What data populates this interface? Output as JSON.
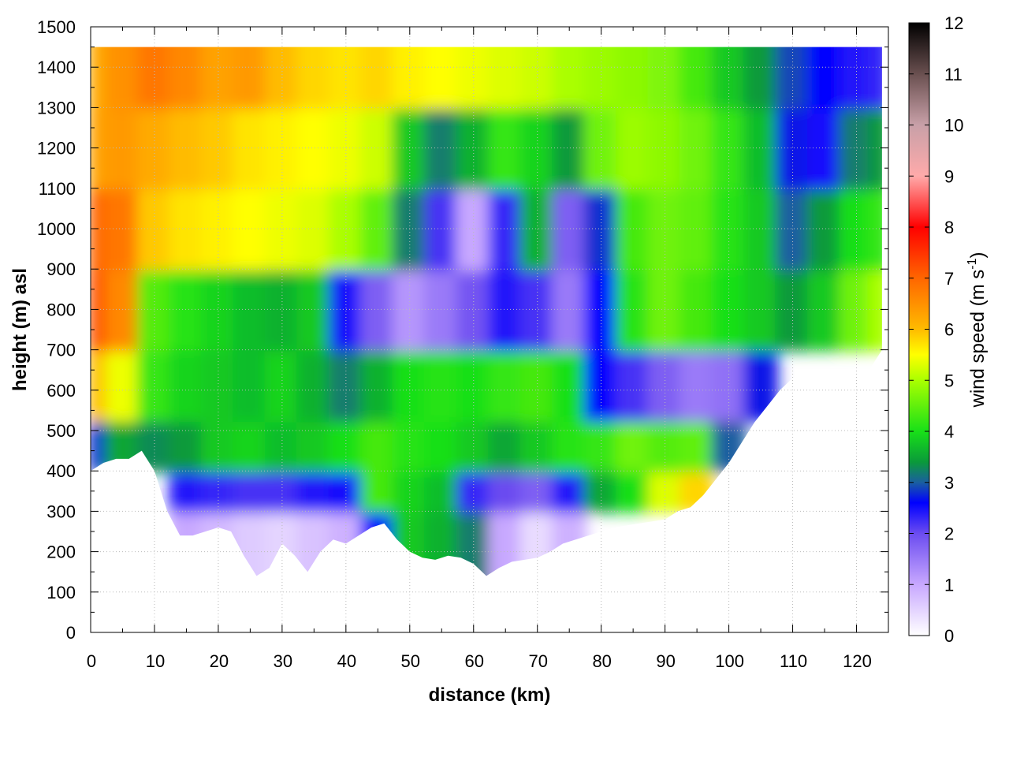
{
  "chart_data": {
    "type": "heatmap",
    "title": "",
    "xlabel": "distance (km)",
    "ylabel": "height (m) asl",
    "xlim": [
      0,
      125
    ],
    "ylim": [
      0,
      1500
    ],
    "x_ticks": [
      0,
      10,
      20,
      30,
      40,
      50,
      60,
      70,
      80,
      90,
      100,
      110,
      120
    ],
    "y_ticks": [
      0,
      100,
      200,
      300,
      400,
      500,
      600,
      700,
      800,
      900,
      1000,
      1100,
      1200,
      1300,
      1400,
      1500
    ],
    "grid": true,
    "colorbar": {
      "label": "wind speed (m s",
      "label_superscript": "-1",
      "label_end": ")",
      "range": [
        0,
        12
      ],
      "ticks": [
        0,
        1,
        2,
        3,
        4,
        5,
        6,
        7,
        8,
        9,
        10,
        11,
        12
      ],
      "stops": [
        {
          "value": 0,
          "color": "#ffffff"
        },
        {
          "value": 1,
          "color": "#c8a8ff"
        },
        {
          "value": 2,
          "color": "#6b4cf0"
        },
        {
          "value": 2.6,
          "color": "#0000ff"
        },
        {
          "value": 3,
          "color": "#1a5fa0"
        },
        {
          "value": 3.4,
          "color": "#0a9a3a"
        },
        {
          "value": 4,
          "color": "#18e018"
        },
        {
          "value": 5,
          "color": "#aaff00"
        },
        {
          "value": 5.5,
          "color": "#ffff00"
        },
        {
          "value": 6,
          "color": "#ffbb00"
        },
        {
          "value": 7,
          "color": "#ff6600"
        },
        {
          "value": 8,
          "color": "#ff0000"
        },
        {
          "value": 9,
          "color": "#ffaaaa"
        },
        {
          "value": 10,
          "color": "#c8a0a8"
        },
        {
          "value": 11,
          "color": "#6a5050"
        },
        {
          "value": 12,
          "color": "#000000"
        }
      ]
    },
    "terrain_surface": {
      "x": [
        0,
        2,
        4,
        6,
        8,
        10,
        12,
        14,
        16,
        18,
        20,
        22,
        24,
        26,
        28,
        30,
        32,
        34,
        36,
        38,
        40,
        42,
        44,
        46,
        48,
        50,
        52,
        54,
        56,
        58,
        60,
        62,
        64,
        66,
        68,
        70,
        72,
        74,
        76,
        78,
        80,
        82,
        84,
        86,
        88,
        90,
        92,
        94,
        96,
        98,
        100,
        102,
        104,
        106,
        108,
        110,
        112,
        114,
        116,
        118,
        120,
        122,
        124
      ],
      "height_m": [
        400,
        420,
        430,
        430,
        450,
        400,
        300,
        240,
        240,
        250,
        260,
        250,
        190,
        140,
        160,
        220,
        190,
        150,
        200,
        230,
        220,
        240,
        260,
        270,
        230,
        200,
        185,
        180,
        190,
        185,
        170,
        140,
        160,
        175,
        180,
        185,
        200,
        220,
        230,
        240,
        250,
        260,
        265,
        270,
        275,
        280,
        300,
        310,
        340,
        380,
        420,
        470,
        520,
        560,
        600,
        630,
        640,
        650,
        640,
        620,
        610,
        650,
        700
      ]
    },
    "series": [
      {
        "x": [
          0,
          5,
          10,
          15,
          20,
          25,
          30,
          35,
          40,
          45,
          50,
          55,
          60,
          65,
          70,
          75,
          80,
          85,
          90,
          95,
          100,
          105,
          110,
          115,
          120,
          124
        ],
        "height_m": 1400,
        "values": [
          6.2,
          6.5,
          6.8,
          6.6,
          6.3,
          6.4,
          6.0,
          5.8,
          5.7,
          5.8,
          5.6,
          5.5,
          5.4,
          5.3,
          5.2,
          5.0,
          4.9,
          4.8,
          4.7,
          4.3,
          3.8,
          3.4,
          2.9,
          2.6,
          2.4,
          2.3
        ]
      },
      {
        "x": [
          0,
          5,
          10,
          15,
          20,
          25,
          30,
          35,
          40,
          45,
          50,
          55,
          60,
          65,
          70,
          75,
          80,
          85,
          90,
          95,
          100,
          105,
          110,
          115,
          120,
          124
        ],
        "height_m": 1200,
        "values": [
          6.3,
          6.4,
          6.2,
          6.0,
          5.9,
          5.7,
          5.6,
          5.5,
          5.4,
          5.2,
          3.8,
          3.2,
          3.6,
          4.2,
          3.9,
          3.4,
          4.6,
          4.9,
          4.8,
          4.6,
          4.2,
          3.7,
          2.7,
          2.5,
          3.2,
          3.4
        ]
      },
      {
        "x": [
          0,
          5,
          10,
          15,
          20,
          25,
          30,
          35,
          40,
          45,
          50,
          55,
          60,
          65,
          70,
          75,
          80,
          85,
          90,
          95,
          100,
          105,
          110,
          115,
          120,
          124
        ],
        "height_m": 1000,
        "values": [
          7.0,
          6.8,
          5.9,
          5.7,
          5.6,
          5.5,
          5.4,
          5.3,
          5.0,
          4.5,
          3.2,
          2.2,
          1.0,
          2.3,
          3.6,
          1.8,
          2.8,
          4.3,
          4.6,
          4.5,
          4.1,
          3.8,
          3.0,
          3.4,
          4.0,
          4.2
        ]
      },
      {
        "x": [
          0,
          5,
          10,
          15,
          20,
          25,
          30,
          35,
          40,
          45,
          50,
          55,
          60,
          65,
          70,
          75,
          80,
          85,
          90,
          95,
          100,
          105,
          110,
          115,
          120,
          124
        ],
        "height_m": 800,
        "values": [
          7.2,
          6.6,
          4.4,
          4.1,
          3.9,
          3.7,
          3.6,
          3.8,
          2.5,
          1.8,
          1.2,
          1.5,
          1.9,
          2.4,
          2.2,
          1.5,
          2.6,
          4.1,
          4.6,
          4.3,
          4.0,
          3.8,
          3.4,
          3.8,
          4.6,
          5.0
        ]
      },
      {
        "x": [
          0,
          5,
          10,
          15,
          20,
          25,
          30,
          35,
          40,
          45,
          50,
          55,
          60,
          65,
          70,
          75,
          80,
          85,
          90,
          95,
          100,
          105,
          110,
          115,
          120,
          124
        ],
        "height_m": 600,
        "values": [
          6.0,
          5.4,
          4.2,
          3.9,
          3.8,
          3.7,
          3.9,
          3.6,
          3.2,
          3.6,
          4.0,
          4.1,
          4.0,
          4.2,
          4.3,
          4.0,
          2.6,
          2.2,
          1.8,
          1.5,
          1.6,
          2.7,
          null,
          null,
          null,
          null
        ]
      },
      {
        "x": [
          0,
          5,
          10,
          15,
          20,
          25,
          30,
          35,
          40,
          45,
          50,
          55,
          60,
          65,
          70,
          75,
          80,
          85,
          90,
          95,
          100,
          105,
          110,
          115,
          120,
          124
        ],
        "height_m": 450,
        "values": [
          2.8,
          3.5,
          3.3,
          3.4,
          3.8,
          3.9,
          3.7,
          3.8,
          4.0,
          4.3,
          4.1,
          4.0,
          3.8,
          3.5,
          3.8,
          4.1,
          4.2,
          4.6,
          4.4,
          4.5,
          3.0,
          null,
          null,
          null,
          null,
          null
        ]
      },
      {
        "x": [
          0,
          5,
          10,
          15,
          20,
          25,
          30,
          35,
          40,
          45,
          50,
          55,
          60,
          65,
          70,
          75,
          80,
          85,
          90,
          95,
          100,
          105,
          110,
          115,
          120,
          124
        ],
        "height_m": 350,
        "values": [
          null,
          null,
          null,
          2.4,
          2.3,
          2.2,
          2.2,
          2.4,
          2.5,
          4.3,
          3.9,
          3.7,
          2.3,
          2.0,
          1.8,
          2.4,
          3.5,
          4.0,
          5.3,
          5.8,
          null,
          null,
          null,
          null,
          null,
          null
        ]
      },
      {
        "x": [
          0,
          5,
          10,
          15,
          20,
          25,
          30,
          35,
          40,
          45,
          50,
          55,
          60,
          65,
          70,
          75,
          80,
          85,
          90,
          95,
          100,
          105,
          110,
          115,
          120,
          124
        ],
        "height_m": 250,
        "values": [
          null,
          null,
          null,
          1.0,
          0.8,
          0.6,
          0.5,
          0.7,
          0.9,
          2.6,
          3.8,
          3.6,
          3.2,
          1.0,
          0.4,
          0.9,
          null,
          null,
          null,
          null,
          null,
          null,
          null,
          null,
          null,
          null
        ]
      }
    ]
  }
}
